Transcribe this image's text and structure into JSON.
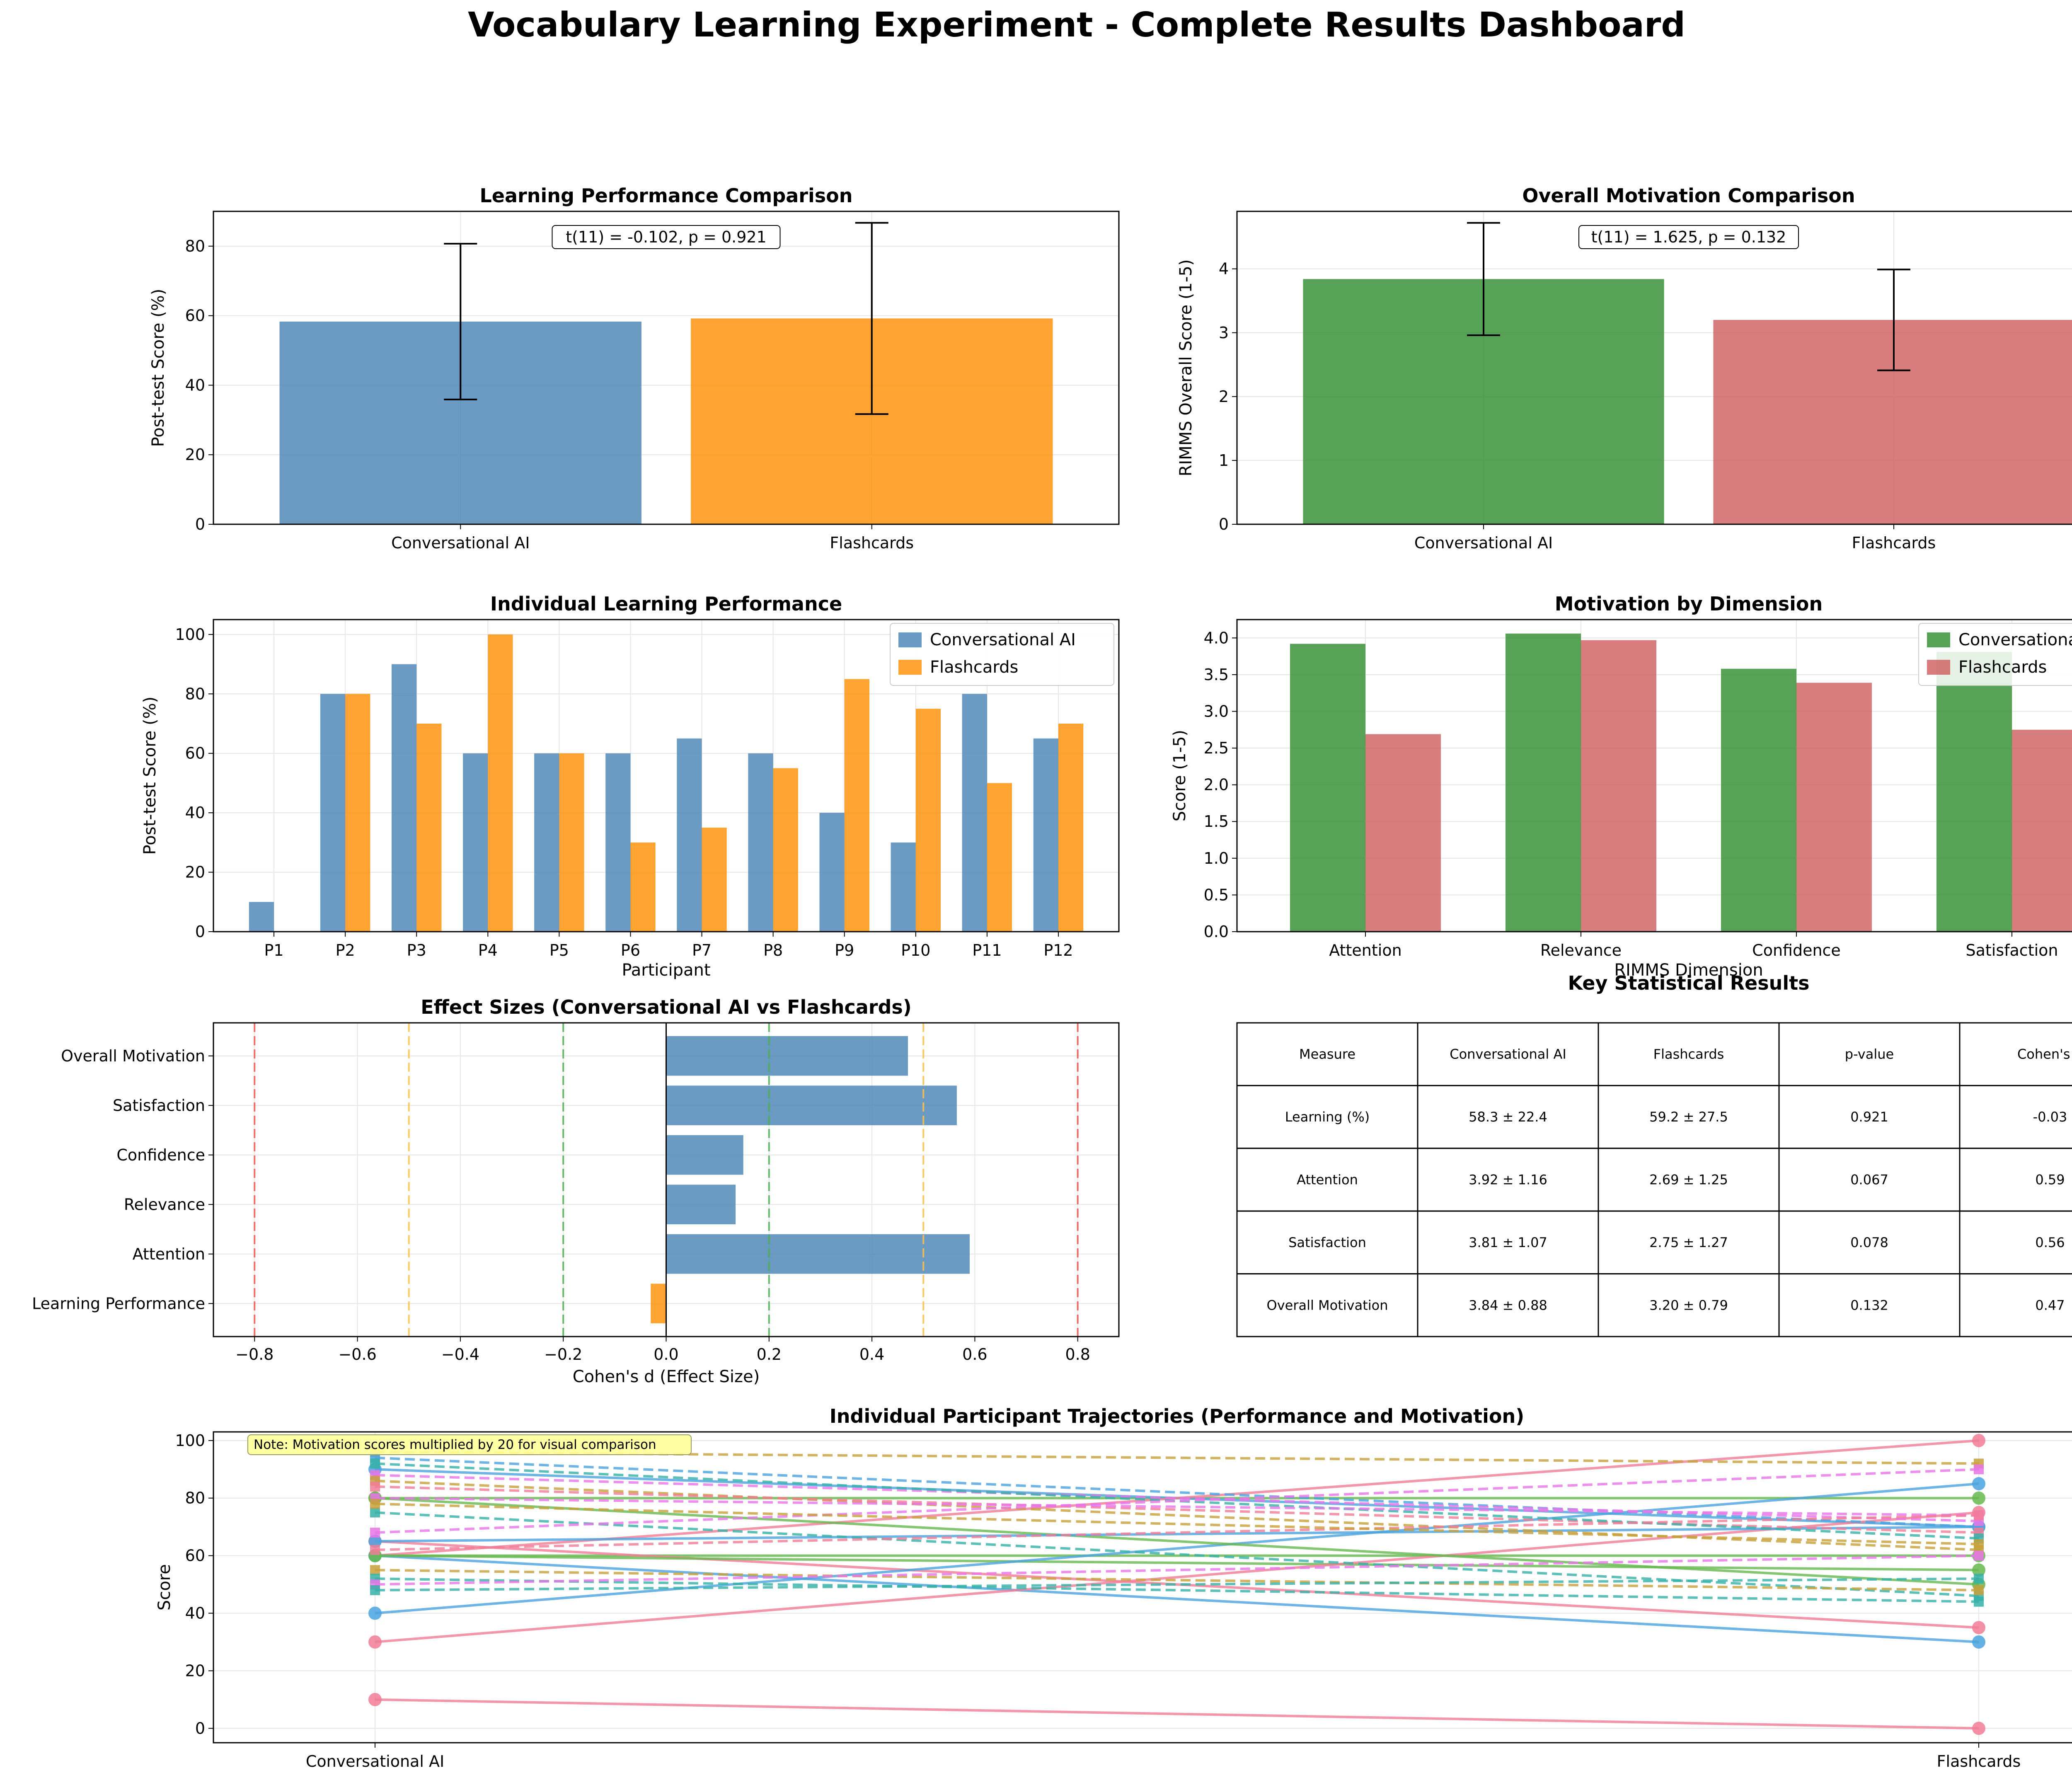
{
  "title": "Vocabulary Learning Experiment - Complete Results Dashboard",
  "colors": {
    "ai_blue": "#4682b4",
    "flash_orange": "#ff8c00",
    "green": "#2e8b2e",
    "red": "#cd5c5c"
  },
  "chart_data": [
    {
      "id": "learning",
      "type": "bar",
      "title": "Learning Performance Comparison",
      "categories": [
        "Conversational AI",
        "Flashcards"
      ],
      "values": [
        58.3,
        59.2
      ],
      "errors": [
        22.4,
        27.5
      ],
      "ylabel": "Post-test Score (%)",
      "ylim": [
        0,
        90
      ],
      "yticks": [
        0,
        20,
        40,
        60,
        80
      ],
      "annotation": "t(11) = -0.102, p = 0.921",
      "grid": true
    },
    {
      "id": "motivation",
      "type": "bar",
      "title": "Overall Motivation Comparison",
      "categories": [
        "Conversational AI",
        "Flashcards"
      ],
      "values": [
        3.84,
        3.2
      ],
      "errors": [
        0.88,
        0.79
      ],
      "ylabel": "RIMMS Overall Score (1-5)",
      "ylim": [
        0,
        4.9
      ],
      "yticks": [
        0,
        1,
        2,
        3,
        4
      ],
      "annotation": "t(11) = 1.625, p = 0.132",
      "grid": true
    },
    {
      "id": "individual",
      "type": "bar",
      "title": "Individual Learning Performance",
      "categories": [
        "P1",
        "P2",
        "P3",
        "P4",
        "P5",
        "P6",
        "P7",
        "P8",
        "P9",
        "P10",
        "P11",
        "P12"
      ],
      "series": [
        {
          "name": "Conversational AI",
          "values": [
            10,
            80,
            90,
            60,
            60,
            60,
            65,
            60,
            40,
            30,
            80,
            65
          ]
        },
        {
          "name": "Flashcards",
          "values": [
            0,
            80,
            70,
            100,
            60,
            30,
            35,
            55,
            85,
            75,
            50,
            70
          ]
        }
      ],
      "xlabel": "Participant",
      "ylabel": "Post-test Score (%)",
      "ylim": [
        0,
        105
      ],
      "yticks": [
        0,
        20,
        40,
        60,
        80,
        100
      ],
      "legend": "top-right",
      "grid": true
    },
    {
      "id": "dimension",
      "type": "bar",
      "title": "Motivation by Dimension",
      "categories": [
        "Attention",
        "Relevance",
        "Confidence",
        "Satisfaction"
      ],
      "series": [
        {
          "name": "Conversational AI",
          "values": [
            3.92,
            4.06,
            3.58,
            3.81
          ]
        },
        {
          "name": "Flashcards",
          "values": [
            2.69,
            3.97,
            3.39,
            2.75
          ]
        }
      ],
      "xlabel": "RIMMS Dimension",
      "ylabel": "Score (1-5)",
      "ylim": [
        0,
        4.25
      ],
      "yticks": [
        0,
        0.5,
        1.0,
        1.5,
        2.0,
        2.5,
        3.0,
        3.5,
        4.0
      ],
      "ytick_labels": [
        "0.0",
        "0.5",
        "1.0",
        "1.5",
        "2.0",
        "2.5",
        "3.0",
        "3.5",
        "4.0"
      ],
      "legend": "top-right",
      "grid": true
    },
    {
      "id": "effect",
      "type": "bar",
      "orientation": "horizontal",
      "title": "Effect Sizes (Conversational AI vs Flashcards)",
      "categories": [
        "Learning Performance",
        "Attention",
        "Relevance",
        "Confidence",
        "Satisfaction",
        "Overall Motivation"
      ],
      "values": [
        -0.03,
        0.59,
        0.135,
        0.15,
        0.565,
        0.47
      ],
      "xlabel": "Cohen's d (Effect Size)",
      "xlim": [
        -0.88,
        0.88
      ],
      "xticks": [
        -0.8,
        -0.6,
        -0.4,
        -0.2,
        0.0,
        0.2,
        0.4,
        0.6,
        0.8
      ],
      "xtick_labels": [
        "−0.8",
        "−0.6",
        "−0.4",
        "−0.2",
        "0.0",
        "0.2",
        "0.4",
        "0.6",
        "0.8"
      ],
      "reference_lines": [
        {
          "value": -0.8,
          "color": "#e8574a"
        },
        {
          "value": -0.5,
          "color": "#ffc04d"
        },
        {
          "value": -0.2,
          "color": "#4caf50"
        },
        {
          "value": 0.2,
          "color": "#4caf50"
        },
        {
          "value": 0.5,
          "color": "#ffc04d"
        },
        {
          "value": 0.8,
          "color": "#e8574a"
        }
      ],
      "grid": true
    },
    {
      "id": "stats_table",
      "type": "table",
      "title": "Key Statistical Results",
      "columns": [
        "Measure",
        "Conversational AI",
        "Flashcards",
        "p-value",
        "Cohen's d"
      ],
      "rows": [
        [
          "Learning (%)",
          "58.3 ± 22.4",
          "59.2 ± 27.5",
          "0.921",
          "-0.03"
        ],
        [
          "Attention",
          "3.92 ± 1.16",
          "2.69 ± 1.25",
          "0.067",
          "0.59"
        ],
        [
          "Satisfaction",
          "3.81 ± 1.07",
          "2.75 ± 1.27",
          "0.078",
          "0.56"
        ],
        [
          "Overall Motivation",
          "3.84 ± 0.88",
          "3.20 ± 0.79",
          "0.132",
          "0.47"
        ]
      ]
    },
    {
      "id": "trajectories",
      "type": "line",
      "title": "Individual Participant Trajectories (Performance and Motivation)",
      "x": [
        "Conversational AI",
        "Flashcards"
      ],
      "ylabel": "Score",
      "ylim": [
        -5,
        103
      ],
      "yticks": [
        0,
        20,
        40,
        60,
        80,
        100
      ],
      "annotation": "Note: Motivation scores multiplied by 20 for visual comparison",
      "series": [
        {
          "values": [
            10,
            0
          ],
          "style": "solid",
          "marker": "circle",
          "color": "#f17c96"
        },
        {
          "values": [
            80,
            80
          ],
          "style": "solid",
          "marker": "circle",
          "color": "#66b84f"
        },
        {
          "values": [
            90,
            70
          ],
          "style": "solid",
          "marker": "circle",
          "color": "#4aa3df"
        },
        {
          "values": [
            60,
            100
          ],
          "style": "solid",
          "marker": "circle",
          "color": "#f17c96"
        },
        {
          "values": [
            60,
            60
          ],
          "style": "solid",
          "marker": "circle",
          "color": "#66b84f"
        },
        {
          "values": [
            60,
            30
          ],
          "style": "solid",
          "marker": "circle",
          "color": "#4aa3df"
        },
        {
          "values": [
            65,
            35
          ],
          "style": "solid",
          "marker": "circle",
          "color": "#f17c96"
        },
        {
          "values": [
            60,
            55
          ],
          "style": "solid",
          "marker": "circle",
          "color": "#66b84f"
        },
        {
          "values": [
            40,
            85
          ],
          "style": "solid",
          "marker": "circle",
          "color": "#4aa3df"
        },
        {
          "values": [
            30,
            75
          ],
          "style": "solid",
          "marker": "circle",
          "color": "#f17c96"
        },
        {
          "values": [
            80,
            50
          ],
          "style": "solid",
          "marker": "circle",
          "color": "#66b84f"
        },
        {
          "values": [
            65,
            70
          ],
          "style": "solid",
          "marker": "circle",
          "color": "#4aa3df"
        },
        {
          "values": [
            96,
            92
          ],
          "style": "dashed",
          "marker": "square",
          "color": "#c7a03b"
        },
        {
          "values": [
            94,
            70
          ],
          "style": "dashed",
          "marker": "square",
          "color": "#4aa3df"
        },
        {
          "values": [
            88,
            72
          ],
          "style": "dashed",
          "marker": "square",
          "color": "#e874e8"
        },
        {
          "values": [
            86,
            62
          ],
          "style": "dashed",
          "marker": "square",
          "color": "#c7a03b"
        },
        {
          "values": [
            84,
            68
          ],
          "style": "dashed",
          "marker": "square",
          "color": "#f17c96"
        },
        {
          "values": [
            92,
            66
          ],
          "style": "dashed",
          "marker": "square",
          "color": "#35b0a8"
        },
        {
          "values": [
            80,
            74
          ],
          "style": "dashed",
          "marker": "square",
          "color": "#e874e8"
        },
        {
          "values": [
            75,
            46
          ],
          "style": "dashed",
          "marker": "square",
          "color": "#35b0a8"
        },
        {
          "values": [
            68,
            90
          ],
          "style": "dashed",
          "marker": "square",
          "color": "#e874e8"
        },
        {
          "values": [
            55,
            48
          ],
          "style": "dashed",
          "marker": "square",
          "color": "#c7a03b"
        },
        {
          "values": [
            52,
            44
          ],
          "style": "dashed",
          "marker": "square",
          "color": "#35b0a8"
        },
        {
          "values": [
            50,
            60
          ],
          "style": "dashed",
          "marker": "square",
          "color": "#e874e8"
        },
        {
          "values": [
            48,
            52
          ],
          "style": "dashed",
          "marker": "square",
          "color": "#35b0a8"
        },
        {
          "values": [
            62,
            74
          ],
          "style": "dashed",
          "marker": "square",
          "color": "#f17c96"
        },
        {
          "values": [
            78,
            64
          ],
          "style": "dashed",
          "marker": "square",
          "color": "#c7a03b"
        }
      ],
      "grid": true
    }
  ]
}
